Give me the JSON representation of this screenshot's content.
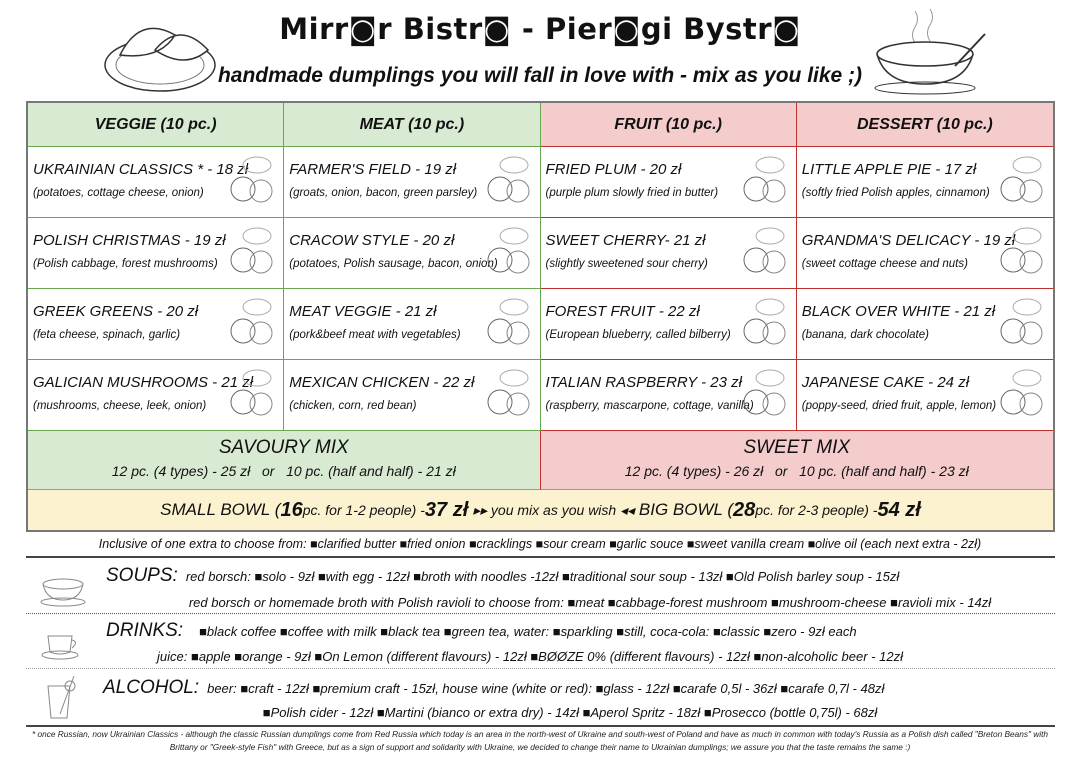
{
  "header": {
    "title": "Mirr◙r Bistr◙ - Pier◙gi Bystr◙",
    "subtitle": "handmade dumplings you will fall in love with - mix as you like ;)"
  },
  "colors": {
    "veggie_meat_bg": "#d9ead3",
    "fruit_dessert_bg": "#f4cccc",
    "bowl_bg": "#fdf2cf",
    "green_border": "#6aa84f",
    "red_border": "#c0302c"
  },
  "categories": [
    {
      "title": "VEGGIE (10 pc.)",
      "items": [
        {
          "name": "UKRAINIAN CLASSICS * - 18 zł",
          "desc": "(potatoes, cottage cheese, onion)",
          "icon": "potatoes-onion-icon"
        },
        {
          "name": "POLISH CHRISTMAS - 19 zł",
          "desc": "(Polish cabbage, forest mushrooms)",
          "icon": "cabbage-mushroom-icon"
        },
        {
          "name": "GREEK GREENS - 20 zł",
          "desc": "(feta cheese, spinach, garlic)",
          "icon": "cheese-spinach-icon"
        },
        {
          "name": "GALICIAN MUSHROOMS - 21 zł",
          "desc": "(mushrooms, cheese, leek, onion)",
          "icon": "mushroom-cheese-icon"
        }
      ]
    },
    {
      "title": "MEAT (10 pc.)",
      "items": [
        {
          "name": "FARMER'S  FIELD - 19 zł",
          "desc": "(groats, onion, bacon, green parsley)",
          "icon": "wheat-bacon-icon"
        },
        {
          "name": "CRACOW  STYLE - 20 zł",
          "desc": "(potatoes, Polish sausage, bacon, onion)",
          "icon": "sausage-icon"
        },
        {
          "name": "MEAT VEGGIE - 21 zł",
          "desc": "(pork&beef meat with vegetables)",
          "icon": "ham-icon"
        },
        {
          "name": "MEXICAN CHICKEN - 22 zł",
          "desc": "(chicken, corn, red bean)",
          "icon": "chicken-corn-icon"
        }
      ]
    },
    {
      "title": "FRUIT (10 pc.)",
      "items": [
        {
          "name": "FRIED PLUM - 20 zł",
          "desc": "(purple plum slowly fried in butter)",
          "icon": "plum-icon"
        },
        {
          "name": "SWEET CHERRY- 21 zł",
          "desc": "(slightly sweetened sour cherry)",
          "icon": "cherry-icon"
        },
        {
          "name": "FOREST FRUIT - 22 zł",
          "desc": "(European blueberry, called bilberry)",
          "icon": "blueberry-icon"
        },
        {
          "name": "ITALIAN RASPBERRY - 23 zł",
          "desc": "(raspberry, mascarpone, cottage, vanilla)",
          "icon": "raspberry-icon"
        }
      ]
    },
    {
      "title": "DESSERT (10 pc.)",
      "items": [
        {
          "name": "LITTLE APPLE PIE - 17 zł",
          "desc": "(softly fried Polish apples, cinnamon)",
          "icon": "apple-cinnamon-icon"
        },
        {
          "name": "GRANDMA'S DELICACY - 19 zł",
          "desc": "(sweet cottage cheese and nuts)",
          "icon": "walnut-icon"
        },
        {
          "name": "BLACK OVER WHITE - 21 zł",
          "desc": "(banana, dark chocolate)",
          "icon": "banana-chocolate-icon"
        },
        {
          "name": "JAPANESE CAKE - 24 zł",
          "desc": "(poppy-seed, dried fruit, apple, lemon)",
          "icon": "apple-poppy-icon"
        }
      ]
    }
  ],
  "mix": {
    "savoury": {
      "title": "SAVOURY MIX",
      "option1": "12 pc. (4 types) - 25 zł",
      "or": "or",
      "option2": "10 pc. (half and half) - 21 zł"
    },
    "sweet": {
      "title": "SWEET MIX",
      "option1": "12 pc. (4 types) - 26 zł",
      "or": "or",
      "option2": "10 pc. (half and half) - 23 zł"
    }
  },
  "bowl": {
    "small_name": "SMALL BOWL (",
    "small_count": "16",
    "small_rest": " pc. for 1-2 people) - ",
    "small_price": "37 zł",
    "middle": "▸▸ you mix as you wish ◂◂",
    "big_name": "BIG BOWL (",
    "big_count": "28",
    "big_rest": " pc. for 2-3 people) - ",
    "big_price": "54 zł"
  },
  "extras": "Inclusive of one extra to choose from: ■clarified butter ■fried onion ■cracklings ■sour cream ■garlic souce ■sweet vanilla cream ■olive oil (each next extra - 2zł)",
  "soups": {
    "label": "SOUPS:",
    "line1": "red borsch: ■solo - 9zł ■with egg - 12zł  ■broth with noodles -12zł ■traditional sour soup - 13zł ■Old Polish barley soup - 15zł",
    "line2": "red borsch or homemade broth with Polish ravioli to choose from: ■meat  ■cabbage-forest mushroom  ■mushroom-cheese  ■ravioli mix - 14zł"
  },
  "drinks": {
    "label": "DRINKS:",
    "line1": "■black coffee  ■coffee with milk  ■black tea  ■green tea,  water: ■sparkling ■still,  coca-cola: ■classic ■zero  -  9zł each",
    "line2": "juice: ■apple ■orange - 9zł   ■On Lemon (different flavours) - 12zł   ■BØØZE 0% (different flavours) - 12zł   ■non-alcoholic beer - 12zł"
  },
  "alcohol": {
    "label": "ALCOHOL:",
    "line1": "beer: ■craft - 12zł ■premium craft - 15zł,   house wine (white or red): ■glass - 12zł ■carafe 0,5l - 36zł ■carafe 0,7l - 48zł",
    "line2": "■Polish cider - 12zł   ■Martini (bianco or extra dry) - 14zł   ■Aperol Spritz - 18zł   ■Prosecco (bottle 0,75l) - 68zł"
  },
  "footnote": "* once Russian, now Ukrainian Classics - although the classic Russian dumplings come from Red Russia which today is an area in the north-west of Ukraine and south-west of Poland and have as much in common with today's Russia as a Polish dish called \"Breton Beans\" with Brittany or \"Greek-style Fish\" with Greece, but as a sign of support and solidarity with Ukraine, we decided to change their name to Ukrainian dumplings; we assure you that the taste remains the same :)"
}
